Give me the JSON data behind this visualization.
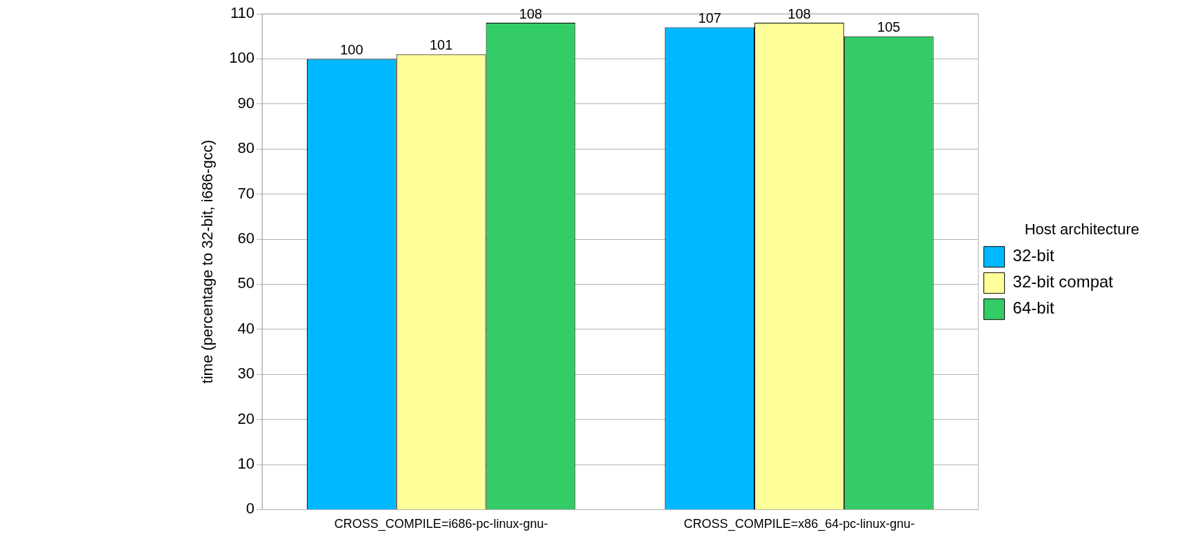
{
  "chart_data": {
    "type": "bar",
    "ylabel": "time (percentage to 32-bit, i686-gcc)",
    "legend_title": "Host architecture",
    "categories": [
      "CROSS_COMPILE=i686-pc-linux-gnu-",
      "CROSS_COMPILE=x86_64-pc-linux-gnu-"
    ],
    "series": [
      {
        "name": "32-bit",
        "color": "#00b8ff",
        "values": [
          100,
          107
        ]
      },
      {
        "name": "32-bit compat",
        "color": "#ffff99",
        "values": [
          101,
          108
        ]
      },
      {
        "name": "64-bit",
        "color": "#33cc66",
        "values": [
          108,
          105
        ]
      }
    ],
    "ylim": [
      0,
      110
    ],
    "yticks": [
      0,
      10,
      20,
      30,
      40,
      50,
      60,
      70,
      80,
      90,
      100,
      110
    ],
    "grid": "y",
    "legend": "right",
    "data_labels": true
  }
}
